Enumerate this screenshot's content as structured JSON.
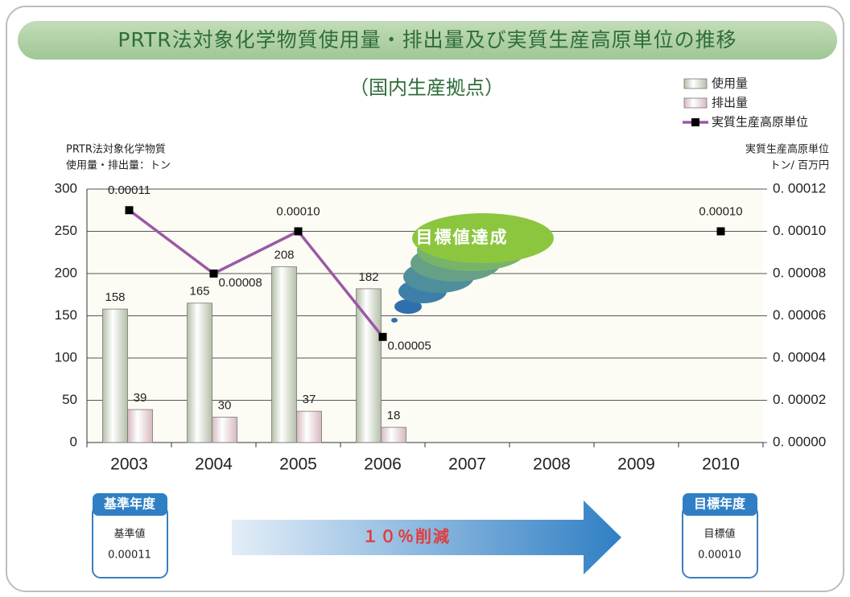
{
  "chart_data": {
    "type": "bar",
    "title": "PRTR法対象化学物質使用量・排出量及び実質生産高原単位の推移",
    "subtitle": "（国内生産拠点）",
    "ylabel": [
      "PRTR法対象化学物質",
      "使用量・排出量：トン"
    ],
    "y2label": [
      "実質生産高原単位",
      "トン/ 百万円"
    ],
    "categories": [
      "2003",
      "2004",
      "2005",
      "2006",
      "2007",
      "2008",
      "2009",
      "2010"
    ],
    "series": [
      {
        "name": "使用量",
        "type": "bar",
        "color": "#b3bfa8",
        "values": [
          158,
          165,
          208,
          182,
          null,
          null,
          null,
          null
        ]
      },
      {
        "name": "排出量",
        "type": "bar",
        "color": "#d6b9be",
        "values": [
          39,
          30,
          37,
          18,
          null,
          null,
          null,
          null
        ]
      },
      {
        "name": "実質生産高原単位",
        "type": "line",
        "axis": "y2",
        "color": "#9a59a5",
        "marker_color": "#000000",
        "values": [
          0.00011,
          8e-05,
          0.0001,
          5e-05,
          null,
          null,
          null,
          0.0001
        ],
        "value_labels": [
          "0.00011",
          "0.00008",
          "0.00010",
          "0.00005",
          null,
          null,
          null,
          "0.00010"
        ]
      }
    ],
    "ylim": [
      0,
      300
    ],
    "yticks": [
      0,
      50,
      100,
      150,
      200,
      250,
      300
    ],
    "y2lim": [
      0,
      0.00012
    ],
    "y2ticks": [
      {
        "value": 0,
        "label": "0. 00000"
      },
      {
        "value": 2e-05,
        "label": "0. 00002"
      },
      {
        "value": 4e-05,
        "label": "0. 00004"
      },
      {
        "value": 6e-05,
        "label": "0. 00006"
      },
      {
        "value": 8e-05,
        "label": "0. 00008"
      },
      {
        "value": 0.0001,
        "label": "0. 00010"
      },
      {
        "value": 0.00012,
        "label": "0. 00012"
      }
    ],
    "grid": true,
    "legend": "top-right",
    "annotations": {
      "target_reached": "目標値達成",
      "base_year": "基準年度",
      "base_value_label": "基準値",
      "base_value": "0.00011",
      "reduction": "１０％削減",
      "target_year": "目標年度",
      "target_value_label": "目標値",
      "target_value": "0.00010"
    }
  }
}
